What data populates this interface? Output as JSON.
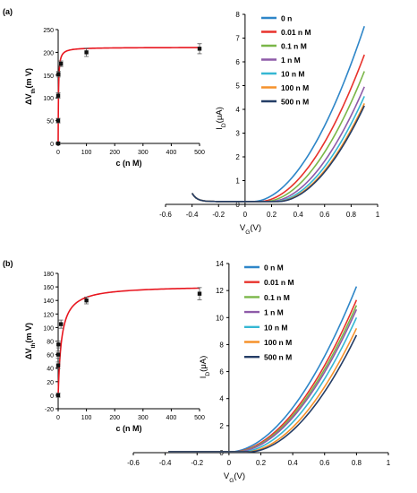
{
  "panels": [
    {
      "id": "a",
      "label": "(a)",
      "inset": {
        "chart_data": {
          "type": "scatter",
          "xlabel": "c (n M)",
          "ylabel_main": "ΔV",
          "ylabel_sub": "th",
          "ylabel_unit": "(m V)",
          "xlim": [
            0,
            500
          ],
          "ylim": [
            0,
            250
          ],
          "xticks": [
            "0",
            "100",
            "200",
            "300",
            "400",
            "500"
          ],
          "yticks": [
            "0",
            "50",
            "100",
            "150",
            "200",
            "250"
          ],
          "points": [
            {
              "x": 0,
              "y": 0,
              "err": 3
            },
            {
              "x": 0.01,
              "y": 50,
              "err": 5
            },
            {
              "x": 0.1,
              "y": 105,
              "err": 6
            },
            {
              "x": 1,
              "y": 152,
              "err": 6
            },
            {
              "x": 10,
              "y": 175,
              "err": 6
            },
            {
              "x": 100,
              "y": 200,
              "err": 9
            },
            {
              "x": 500,
              "y": 208,
              "err": 11
            }
          ],
          "fit_color": "#e8161f"
        }
      },
      "main": {
        "chart_data": {
          "type": "line",
          "xlabel": "V",
          "xlabel_sub": "G",
          "xlabel_unit": "(V)",
          "ylabel": "I",
          "ylabel_sub": "D",
          "ylabel_unit": "(μA)",
          "xlim": [
            -0.6,
            1.0
          ],
          "ylim": [
            0,
            8
          ],
          "xticks": [
            "-0.6",
            "-0.4",
            "-0.2",
            "0",
            "0.2",
            "0.4",
            "0.6",
            "0.8",
            "1"
          ],
          "yticks": [
            "0",
            "1",
            "2",
            "3",
            "4",
            "5",
            "6",
            "7",
            "8"
          ],
          "series": [
            {
              "name": "0 n",
              "color": "#2e86c8",
              "x0": 0.06,
              "yend": 7.5
            },
            {
              "name": "0.01 n M",
              "color": "#e8322b",
              "x0": 0.11,
              "yend": 6.3
            },
            {
              "name": "0.1 n M",
              "color": "#7ab648",
              "x0": 0.15,
              "yend": 5.6
            },
            {
              "name": "1 n M",
              "color": "#8e5aa8",
              "x0": 0.19,
              "yend": 4.95
            },
            {
              "name": "10 n M",
              "color": "#35b7d3",
              "x0": 0.22,
              "yend": 4.55
            },
            {
              "name": "100 n M",
              "color": "#f5922b",
              "x0": 0.24,
              "yend": 4.25
            },
            {
              "name": "500 n M",
              "color": "#243d66",
              "x0": 0.25,
              "yend": 4.15
            }
          ]
        }
      }
    },
    {
      "id": "b",
      "label": "(b)",
      "inset": {
        "chart_data": {
          "type": "scatter",
          "xlabel": "c (n M)",
          "ylabel_main": "ΔV",
          "ylabel_sub": "th",
          "ylabel_unit": "(m V)",
          "xlim": [
            0,
            500
          ],
          "ylim": [
            -20,
            180
          ],
          "xticks": [
            "0",
            "100",
            "200",
            "300",
            "400",
            "500"
          ],
          "yticks": [
            "-20",
            "0",
            "20",
            "40",
            "60",
            "80",
            "100",
            "120",
            "140",
            "160",
            "180"
          ],
          "points": [
            {
              "x": 0,
              "y": 0,
              "err": 3
            },
            {
              "x": 0.01,
              "y": 44,
              "err": 5
            },
            {
              "x": 0.1,
              "y": 60,
              "err": 5
            },
            {
              "x": 1,
              "y": 75,
              "err": 5
            },
            {
              "x": 10,
              "y": 105,
              "err": 6
            },
            {
              "x": 100,
              "y": 140,
              "err": 5
            },
            {
              "x": 500,
              "y": 150,
              "err": 9
            }
          ],
          "fit_color": "#e8161f"
        }
      },
      "main": {
        "chart_data": {
          "type": "line",
          "xlabel": "V",
          "xlabel_sub": "G",
          "xlabel_unit": "(V)",
          "ylabel": "I",
          "ylabel_sub": "D",
          "ylabel_unit": "(μA)",
          "xlim": [
            -0.6,
            1.0
          ],
          "ylim": [
            0,
            14
          ],
          "xticks": [
            "-0.6",
            "-0.4",
            "-0.2",
            "0",
            "0.2",
            "0.4",
            "0.6",
            "0.8",
            "1"
          ],
          "yticks": [
            "0",
            "2",
            "4",
            "6",
            "8",
            "10",
            "12",
            "14"
          ],
          "series": [
            {
              "name": "0  n M",
              "color": "#2e86c8",
              "x0": 0.0,
              "yend": 12.3
            },
            {
              "name": "0.01 n M",
              "color": "#e8322b",
              "x0": 0.02,
              "yend": 11.3
            },
            {
              "name": "0.1 n M",
              "color": "#7ab648",
              "x0": 0.03,
              "yend": 10.9
            },
            {
              "name": "1 n M",
              "color": "#8e5aa8",
              "x0": 0.04,
              "yend": 10.6
            },
            {
              "name": "10 n M",
              "color": "#35b7d3",
              "x0": 0.07,
              "yend": 10.0
            },
            {
              "name": "100 n M",
              "color": "#f5922b",
              "x0": 0.1,
              "yend": 9.2
            },
            {
              "name": "500 n M",
              "color": "#243d66",
              "x0": 0.12,
              "yend": 8.7
            }
          ]
        }
      }
    }
  ]
}
